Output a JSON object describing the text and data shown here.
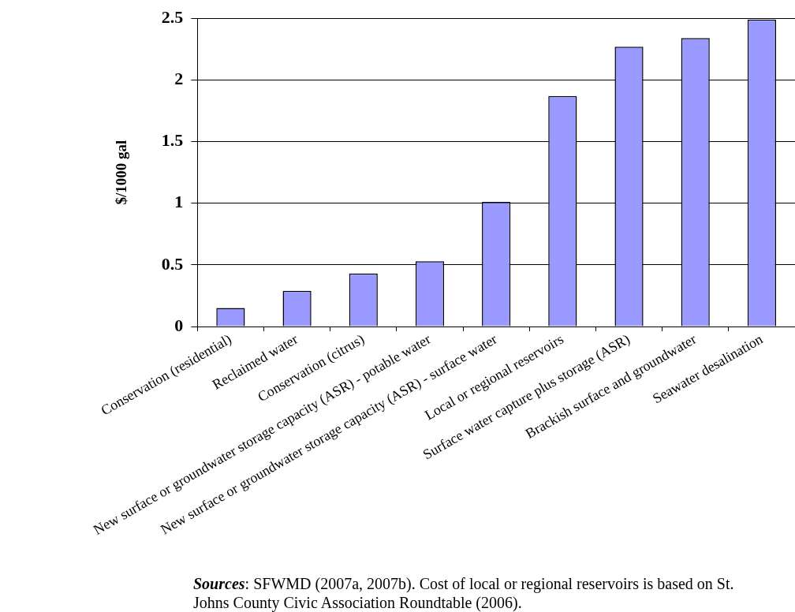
{
  "chart_data": {
    "type": "bar",
    "ylabel": "$/1000 gal",
    "categories": [
      "Conservation (residential)",
      "Reclaimed water",
      "Conservation (citrus)",
      "New surface or groundwater storage capacity (ASR) - potable water",
      "New surface or groundwater storage capacity (ASR) - surface water",
      "Local or regional reservoirs",
      "Surface water capture plus storage (ASR)",
      "Brackish surface and groundwater",
      "Seawater desalination"
    ],
    "values": [
      0.15,
      0.29,
      0.43,
      0.53,
      1.01,
      1.87,
      2.27,
      2.34,
      2.49
    ],
    "color": "#9999ff",
    "ylim": [
      0,
      2.5
    ],
    "yticks": [
      0,
      0.5,
      1,
      1.5,
      2,
      2.5
    ],
    "grid": "y",
    "legend": false,
    "annotations": [
      "Sources: SFWMD (2007a, 2007b).  Cost of local or regional reservoirs is based on St. Johns County Civic Association Roundtable (2006)."
    ]
  }
}
